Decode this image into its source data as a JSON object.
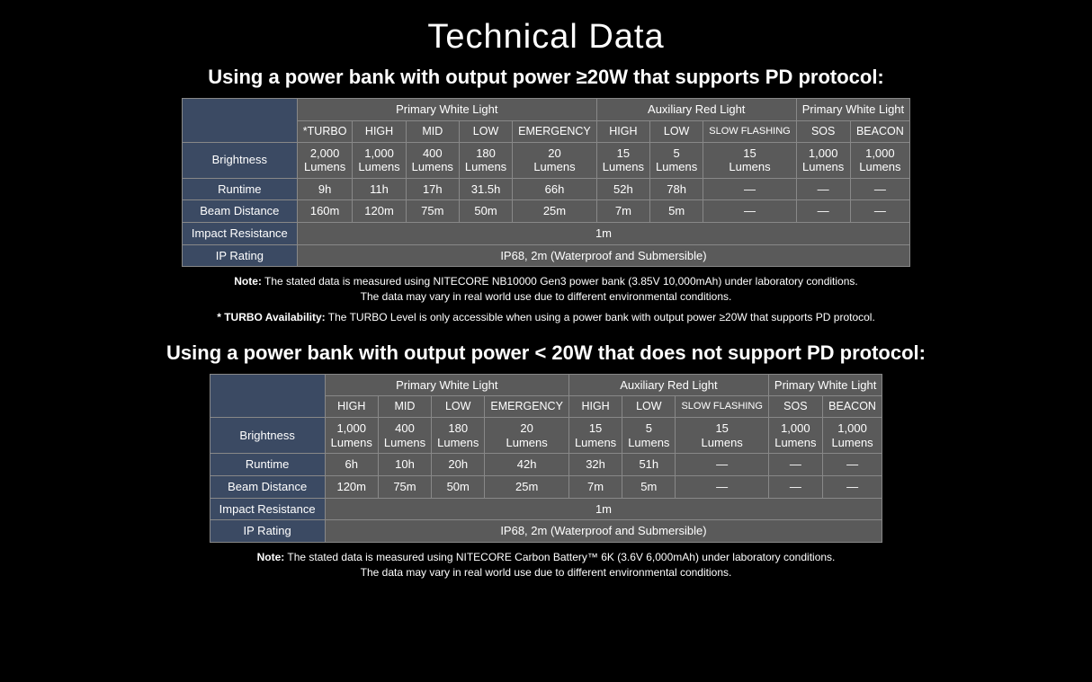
{
  "title": "Technical Data",
  "tableA": {
    "subtitle": "Using a power bank with output power ≥20W that supports PD protocol:",
    "groups": [
      "Primary White Light",
      "Auxiliary Red Light",
      "Primary White Light"
    ],
    "modes": [
      "*TURBO",
      "HIGH",
      "MID",
      "LOW",
      "EMERGENCY",
      "HIGH",
      "LOW",
      "SLOW FLASHING",
      "SOS",
      "BEACON"
    ],
    "rows": {
      "brightness_label": "Brightness",
      "brightness": [
        "2,000 Lumens",
        "1,000 Lumens",
        "400 Lumens",
        "180 Lumens",
        "20 Lumens",
        "15 Lumens",
        "5 Lumens",
        "15 Lumens",
        "1,000 Lumens",
        "1,000 Lumens"
      ],
      "runtime_label": "Runtime",
      "runtime": [
        "9h",
        "11h",
        "17h",
        "31.5h",
        "66h",
        "52h",
        "78h",
        "—",
        "—",
        "—"
      ],
      "beam_label": "Beam Distance",
      "beam": [
        "160m",
        "120m",
        "75m",
        "50m",
        "25m",
        "7m",
        "5m",
        "—",
        "—",
        "—"
      ],
      "impact_label": "Impact Resistance",
      "impact": "1m",
      "ip_label": "IP Rating",
      "ip": "IP68, 2m (Waterproof and Submersible)"
    },
    "note1_bold": "Note:",
    "note1": " The stated data is measured using NITECORE NB10000 Gen3 power bank (3.85V 10,000mAh) under laboratory conditions.",
    "note1b": "The data may vary in real world use due to different environmental conditions.",
    "note2_bold": "* TURBO Availability:",
    "note2": " The TURBO Level is only accessible when using a power bank with output power ≥20W that supports PD protocol."
  },
  "tableB": {
    "subtitle": "Using a power bank with output power < 20W that does not support PD protocol:",
    "groups": [
      "Primary White Light",
      "Auxiliary Red Light",
      "Primary White Light"
    ],
    "modes": [
      "HIGH",
      "MID",
      "LOW",
      "EMERGENCY",
      "HIGH",
      "LOW",
      "SLOW FLASHING",
      "SOS",
      "BEACON"
    ],
    "rows": {
      "brightness_label": "Brightness",
      "brightness": [
        "1,000 Lumens",
        "400 Lumens",
        "180 Lumens",
        "20 Lumens",
        "15 Lumens",
        "5 Lumens",
        "15 Lumens",
        "1,000 Lumens",
        "1,000 Lumens"
      ],
      "runtime_label": "Runtime",
      "runtime": [
        "6h",
        "10h",
        "20h",
        "42h",
        "32h",
        "51h",
        "—",
        "—",
        "—"
      ],
      "beam_label": "Beam Distance",
      "beam": [
        "120m",
        "75m",
        "50m",
        "25m",
        "7m",
        "5m",
        "—",
        "—",
        "—"
      ],
      "impact_label": "Impact Resistance",
      "impact": "1m",
      "ip_label": "IP Rating",
      "ip": "IP68, 2m (Waterproof and Submersible)"
    },
    "note1_bold": "Note:",
    "note1": " The stated data is measured using NITECORE Carbon Battery™ 6K (3.6V 6,000mAh) under laboratory conditions.",
    "note1b": "The data may vary in real world use due to different environmental conditions."
  },
  "colors": {
    "background": "#000000",
    "text": "#ffffff",
    "rowlabel_bg": "#3b4a63",
    "cell_bg": "#5a5a5a",
    "border": "#888888"
  }
}
